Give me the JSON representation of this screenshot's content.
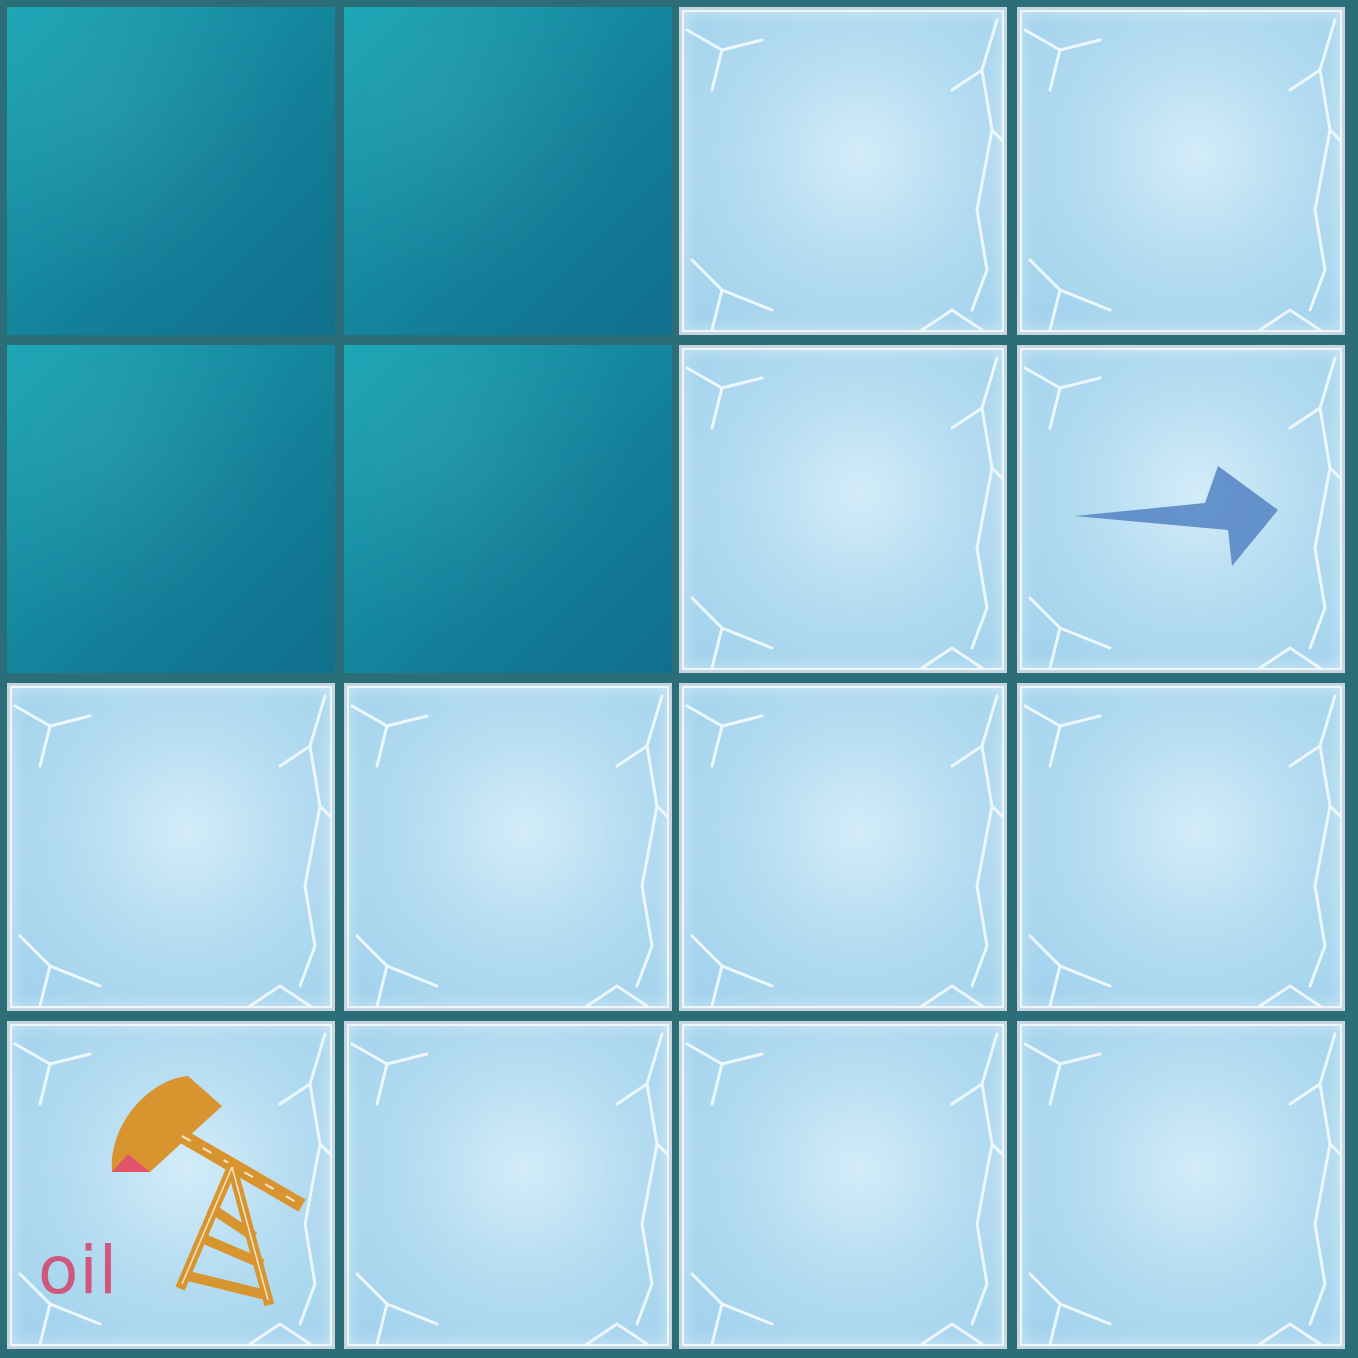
{
  "game": {
    "grid": {
      "rows": 4,
      "cols": 4
    },
    "tiles": [
      [
        "water",
        "water",
        "ice",
        "ice"
      ],
      [
        "water",
        "water",
        "ice",
        "ice"
      ],
      [
        "ice",
        "ice",
        "ice",
        "ice"
      ],
      [
        "ice",
        "ice",
        "ice",
        "ice"
      ]
    ],
    "agent": {
      "type": "arrow",
      "direction": "right",
      "row": 1,
      "col": 3,
      "color": "#5b8ac7"
    },
    "goal": {
      "type": "oil-derrick",
      "row": 3,
      "col": 0,
      "label": "oil",
      "label_color": "#d0577c",
      "color": "#d8942f"
    },
    "colors": {
      "water": "#1689a0",
      "ice": "#b4dcf1",
      "grid_line": "#2b6e77"
    }
  }
}
